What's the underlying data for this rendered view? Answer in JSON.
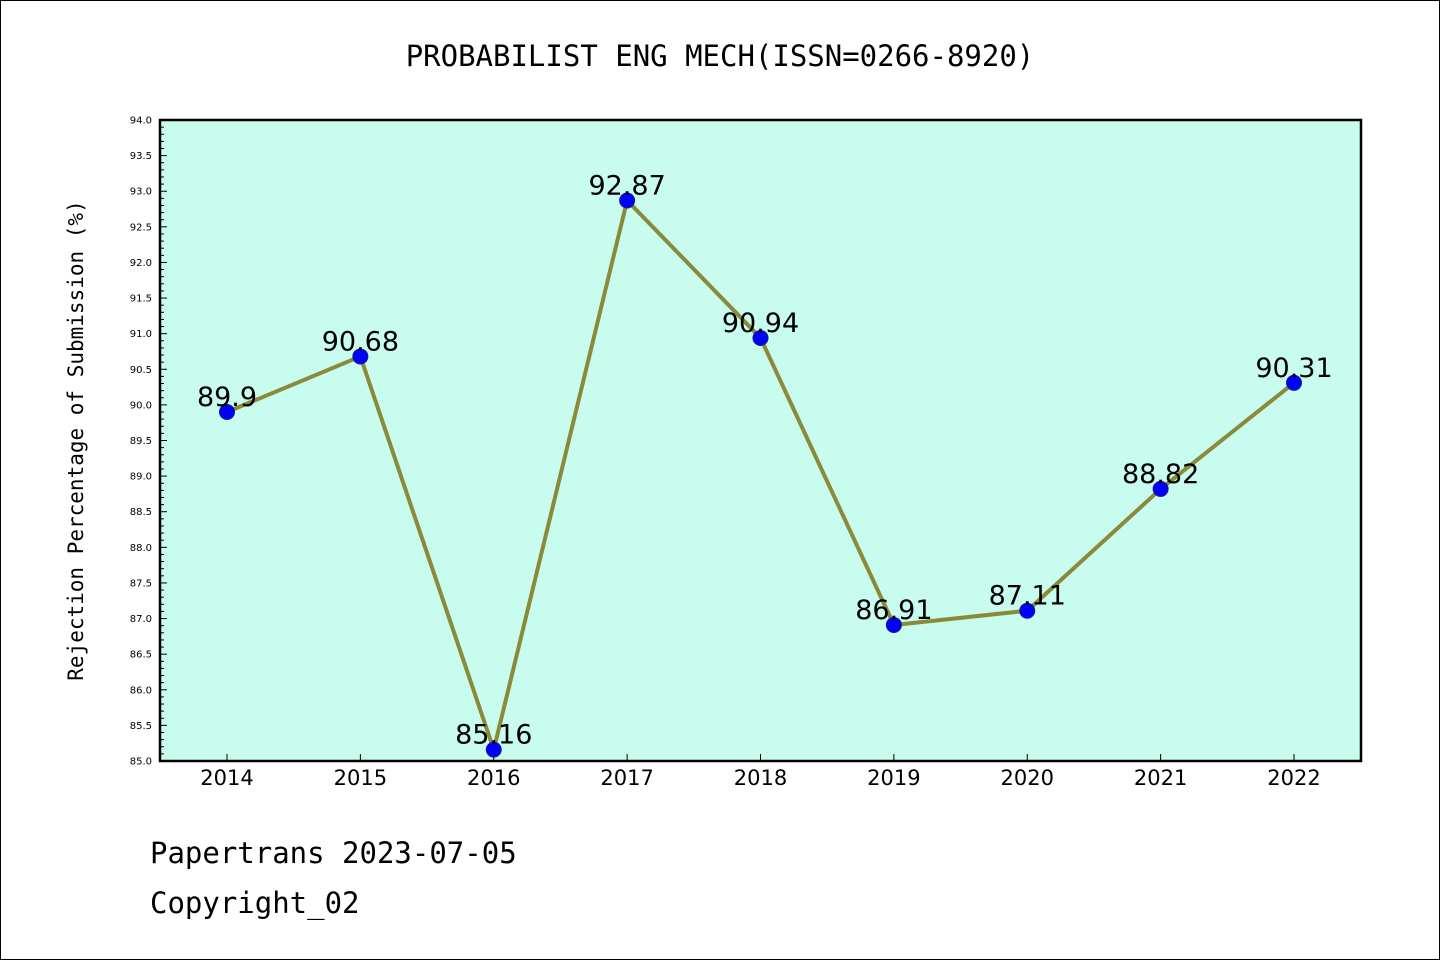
{
  "chart_data": {
    "type": "line",
    "title": "PROBABILIST ENG MECH(ISSN=0266-8920)",
    "xlabel": "",
    "ylabel": "Rejection Percentage of Submission (%)",
    "categories": [
      "2014",
      "2015",
      "2016",
      "2017",
      "2018",
      "2019",
      "2020",
      "2021",
      "2022"
    ],
    "series": [
      {
        "values": [
          89.9,
          90.68,
          85.16,
          92.87,
          90.94,
          86.91,
          87.11,
          88.82,
          90.31
        ],
        "labels": [
          "89.9",
          "90.68",
          "85.16",
          "92.87",
          "90.94",
          "86.91",
          "87.11",
          "88.82",
          "90.31"
        ]
      }
    ],
    "ylim": [
      85.0,
      94.0
    ],
    "yticks": [
      "85.0",
      "85.5",
      "86.0",
      "86.5",
      "87.0",
      "87.5",
      "88.0",
      "88.5",
      "89.0",
      "89.5",
      "90.0",
      "90.5",
      "91.0",
      "91.5",
      "92.0",
      "92.5",
      "93.0",
      "93.5",
      "94.0"
    ],
    "grid": false,
    "colors": {
      "plot_background": "#c8fcee",
      "line": "#8b8a3a",
      "marker": "#0000ff"
    }
  },
  "footer": {
    "line1": "Papertrans 2023-07-05",
    "line2": "Copyright_02"
  }
}
